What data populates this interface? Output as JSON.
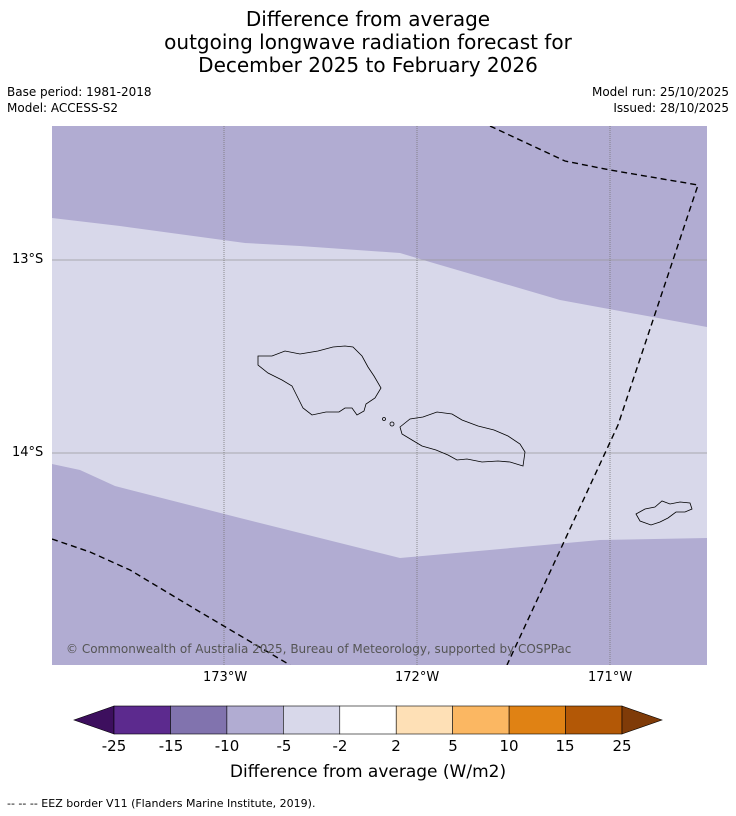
{
  "title": {
    "line1": "Difference from average",
    "line2": "outgoing longwave radiation forecast for",
    "line3": "December 2025 to February 2026"
  },
  "meta": {
    "base_period": "Base period: 1981-2018",
    "model": "Model: ACCESS-S2",
    "model_run": "Model run: 25/10/2025",
    "issued": "Issued: 28/10/2025"
  },
  "map": {
    "lat_labels": [
      "13°S",
      "14°S"
    ],
    "lon_labels": [
      "173°W",
      "172°W",
      "171°W"
    ],
    "copyright": "© Commonwealth of Australia 2025, Bureau of Meteorology, supported by COSPPac",
    "region_colors": {
      "light": "#d8d8ea",
      "mid": "#b1acd2"
    }
  },
  "colorbar": {
    "tick_labels": [
      "-25",
      "-15",
      "-10",
      "-5",
      "-2",
      "2",
      "5",
      "10",
      "15",
      "25"
    ],
    "colors": [
      "#3d0f5e",
      "#5c2a8e",
      "#8173ae",
      "#b1acd2",
      "#d8d8ea",
      "#ffffff",
      "#fee0b6",
      "#fbb762",
      "#e08214",
      "#b35806",
      "#7f3b08"
    ],
    "title": "Difference from average (W/m2)"
  },
  "footer": "--  --  -- EEZ border V11 (Flanders Marine Institute, 2019)."
}
